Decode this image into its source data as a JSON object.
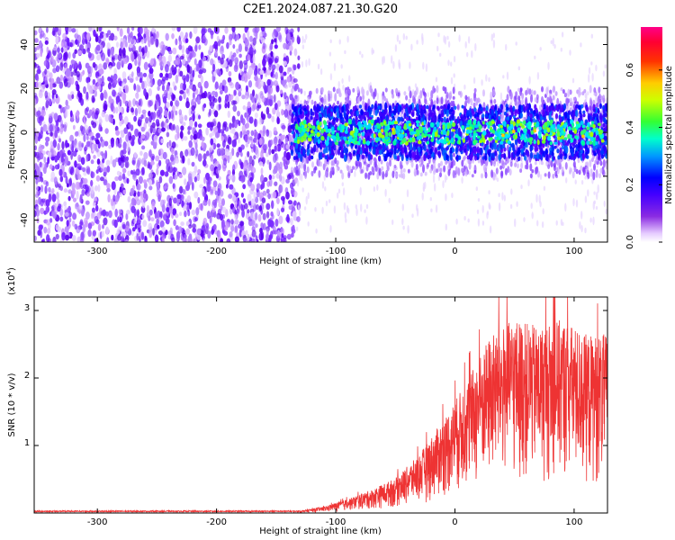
{
  "title": "C2E1.2024.087.21.30.G20",
  "chart_data": [
    {
      "type": "heatmap",
      "xlabel": "Height of straight line (km)",
      "ylabel": "Frequency (Hz)",
      "xlim": [
        -353,
        128
      ],
      "ylim": [
        -50,
        48
      ],
      "xticks": [
        -300,
        -200,
        -100,
        0,
        100
      ],
      "yticks": [
        -40,
        -20,
        0,
        20,
        40
      ],
      "colorbar": {
        "label": "Normalized spectral amplitude",
        "range": [
          0.0,
          0.75
        ],
        "ticks": [
          0.0,
          0.2,
          0.4,
          0.6
        ],
        "colors": [
          "#ffffff",
          "#cc99ff",
          "#6600ff",
          "#0000ff",
          "#00ccff",
          "#00ff99",
          "#66ff00",
          "#ffff00",
          "#ff9900",
          "#ff0000",
          "#ff00ff"
        ]
      },
      "regions": [
        {
          "x_range": [
            -353,
            -137
          ],
          "freq_range": [
            -50,
            48
          ],
          "amplitude": 0.08,
          "note": "broadband noise"
        },
        {
          "x_range": [
            -137,
            128
          ],
          "freq_range": [
            -12,
            12
          ],
          "amplitude": 0.3,
          "note": "narrow band near 0 Hz"
        }
      ]
    },
    {
      "type": "line",
      "xlabel": "Height of straight line (km)",
      "ylabel": "SNR (10 * v/v)",
      "yscale_label": "(x10",
      "yscale_exp": "4",
      "yscale_close": ")",
      "xlim": [
        -353,
        128
      ],
      "ylim": [
        0,
        3.2
      ],
      "xticks": [
        -300,
        -200,
        -100,
        0,
        100
      ],
      "yticks": [
        1,
        2,
        3
      ],
      "series": [
        {
          "color": "#ee3333",
          "envelope": [
            {
              "x": -353,
              "y": 0.02
            },
            {
              "x": -200,
              "y": 0.02
            },
            {
              "x": -130,
              "y": 0.03
            },
            {
              "x": -110,
              "y": 0.08
            },
            {
              "x": -90,
              "y": 0.18
            },
            {
              "x": -70,
              "y": 0.3
            },
            {
              "x": -50,
              "y": 0.45
            },
            {
              "x": -30,
              "y": 0.75
            },
            {
              "x": -10,
              "y": 1.2
            },
            {
              "x": 10,
              "y": 1.7
            },
            {
              "x": 30,
              "y": 2.3
            },
            {
              "x": 50,
              "y": 2.5
            },
            {
              "x": 70,
              "y": 2.4
            },
            {
              "x": 90,
              "y": 2.5
            },
            {
              "x": 110,
              "y": 2.3
            },
            {
              "x": 128,
              "y": 2.3
            }
          ]
        }
      ]
    }
  ]
}
